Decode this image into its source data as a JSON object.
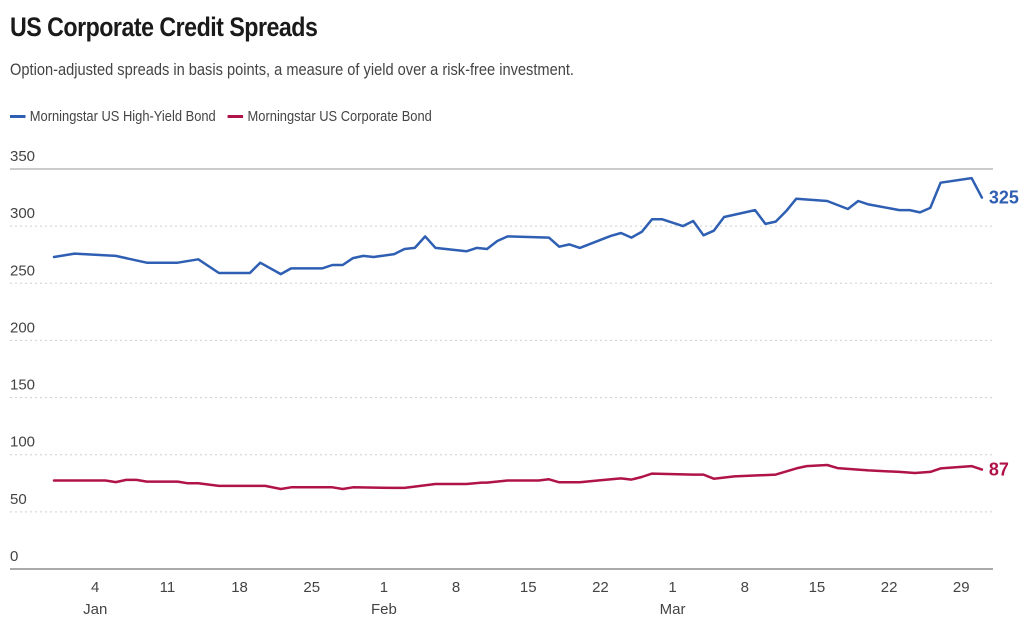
{
  "chart_data": {
    "type": "line",
    "title": "US Corporate Credit Spreads",
    "subtitle": "Option-adjusted spreads in basis points, a measure of yield over a risk-free investment.",
    "xlabel": "",
    "ylabel": "",
    "x_unit": "day of year (0 = Jan 1)",
    "xlim": [
      -1.0,
      94.4
    ],
    "ylim": [
      0,
      350
    ],
    "y_ticks": [
      0,
      50,
      100,
      150,
      200,
      250,
      300,
      350
    ],
    "x_ticks": [
      {
        "x": 3,
        "label": "4",
        "month": "Jan"
      },
      {
        "x": 10,
        "label": "11",
        "month": ""
      },
      {
        "x": 17,
        "label": "18",
        "month": ""
      },
      {
        "x": 24,
        "label": "25",
        "month": ""
      },
      {
        "x": 31,
        "label": "1",
        "month": "Feb"
      },
      {
        "x": 38,
        "label": "8",
        "month": ""
      },
      {
        "x": 45,
        "label": "15",
        "month": ""
      },
      {
        "x": 52,
        "label": "22",
        "month": ""
      },
      {
        "x": 59,
        "label": "1",
        "month": "Mar"
      },
      {
        "x": 66,
        "label": "8",
        "month": ""
      },
      {
        "x": 73,
        "label": "15",
        "month": ""
      },
      {
        "x": 80,
        "label": "22",
        "month": ""
      },
      {
        "x": 87,
        "label": "29",
        "month": ""
      }
    ],
    "grid": "horizontal dotted",
    "legend_position": "top-left",
    "series": [
      {
        "name": "Morningstar US High-Yield Bond",
        "color": "#2f5fb3",
        "end_label": "325",
        "points": [
          [
            -1,
            273
          ],
          [
            1,
            276
          ],
          [
            5,
            274
          ],
          [
            8,
            268
          ],
          [
            11,
            268
          ],
          [
            13,
            271
          ],
          [
            15,
            259
          ],
          [
            18,
            259
          ],
          [
            19,
            268
          ],
          [
            21,
            258
          ],
          [
            22,
            263
          ],
          [
            25,
            263
          ],
          [
            26,
            266
          ],
          [
            27,
            266
          ],
          [
            28,
            272
          ],
          [
            29,
            274
          ],
          [
            30,
            273
          ],
          [
            32,
            275.5
          ],
          [
            33,
            280
          ],
          [
            34,
            281
          ],
          [
            35,
            291
          ],
          [
            36,
            281
          ],
          [
            39,
            278
          ],
          [
            40,
            281
          ],
          [
            41,
            280
          ],
          [
            42,
            287
          ],
          [
            43,
            291
          ],
          [
            47,
            290
          ],
          [
            48,
            282
          ],
          [
            49,
            284
          ],
          [
            50,
            281
          ],
          [
            53,
            291.5
          ],
          [
            54,
            294
          ],
          [
            55,
            290
          ],
          [
            56,
            295
          ],
          [
            57,
            306
          ],
          [
            58,
            306
          ],
          [
            60,
            300
          ],
          [
            61,
            304.5
          ],
          [
            62,
            292
          ],
          [
            63,
            296
          ],
          [
            64,
            308
          ],
          [
            67,
            314
          ],
          [
            68,
            302
          ],
          [
            69,
            304
          ],
          [
            70,
            313
          ],
          [
            71,
            324
          ],
          [
            74,
            322
          ],
          [
            76,
            315
          ],
          [
            77,
            322
          ],
          [
            78,
            319
          ],
          [
            81,
            314
          ],
          [
            82,
            314
          ],
          [
            83,
            312
          ],
          [
            84,
            316
          ],
          [
            85,
            338
          ],
          [
            88,
            342
          ],
          [
            89,
            325
          ]
        ]
      },
      {
        "name": "Morningstar US Corporate Bond",
        "color": "#b0134a",
        "end_label": "87",
        "points": [
          [
            -1,
            77.4
          ],
          [
            4,
            77.4
          ],
          [
            5,
            76
          ],
          [
            6,
            78
          ],
          [
            7,
            78
          ],
          [
            8,
            76.5
          ],
          [
            11,
            76.5
          ],
          [
            12,
            75
          ],
          [
            13,
            75
          ],
          [
            15,
            72.7
          ],
          [
            19.5,
            72.7
          ],
          [
            21,
            70
          ],
          [
            22,
            71.5
          ],
          [
            26,
            71.5
          ],
          [
            27,
            70
          ],
          [
            28,
            71.5
          ],
          [
            32,
            71
          ],
          [
            33,
            71
          ],
          [
            36,
            74.4
          ],
          [
            39,
            74.4
          ],
          [
            40.5,
            75.6
          ],
          [
            41,
            75.6
          ],
          [
            43,
            77.4
          ],
          [
            46,
            77.4
          ],
          [
            47,
            78.5
          ],
          [
            48,
            75.9
          ],
          [
            50,
            75.9
          ],
          [
            52,
            77.6
          ],
          [
            54,
            79.3
          ],
          [
            55,
            78.2
          ],
          [
            56,
            80.5
          ],
          [
            57,
            83.5
          ],
          [
            59,
            83
          ],
          [
            61,
            82.6
          ],
          [
            62,
            82.6
          ],
          [
            63,
            79
          ],
          [
            65,
            81
          ],
          [
            69,
            82.6
          ],
          [
            71,
            88
          ],
          [
            72,
            90
          ],
          [
            74,
            91
          ],
          [
            75,
            88.3
          ],
          [
            78,
            86.3
          ],
          [
            81,
            85
          ],
          [
            82.5,
            84
          ],
          [
            84,
            85
          ],
          [
            85,
            88
          ],
          [
            88,
            90
          ],
          [
            89,
            87
          ]
        ]
      }
    ]
  }
}
